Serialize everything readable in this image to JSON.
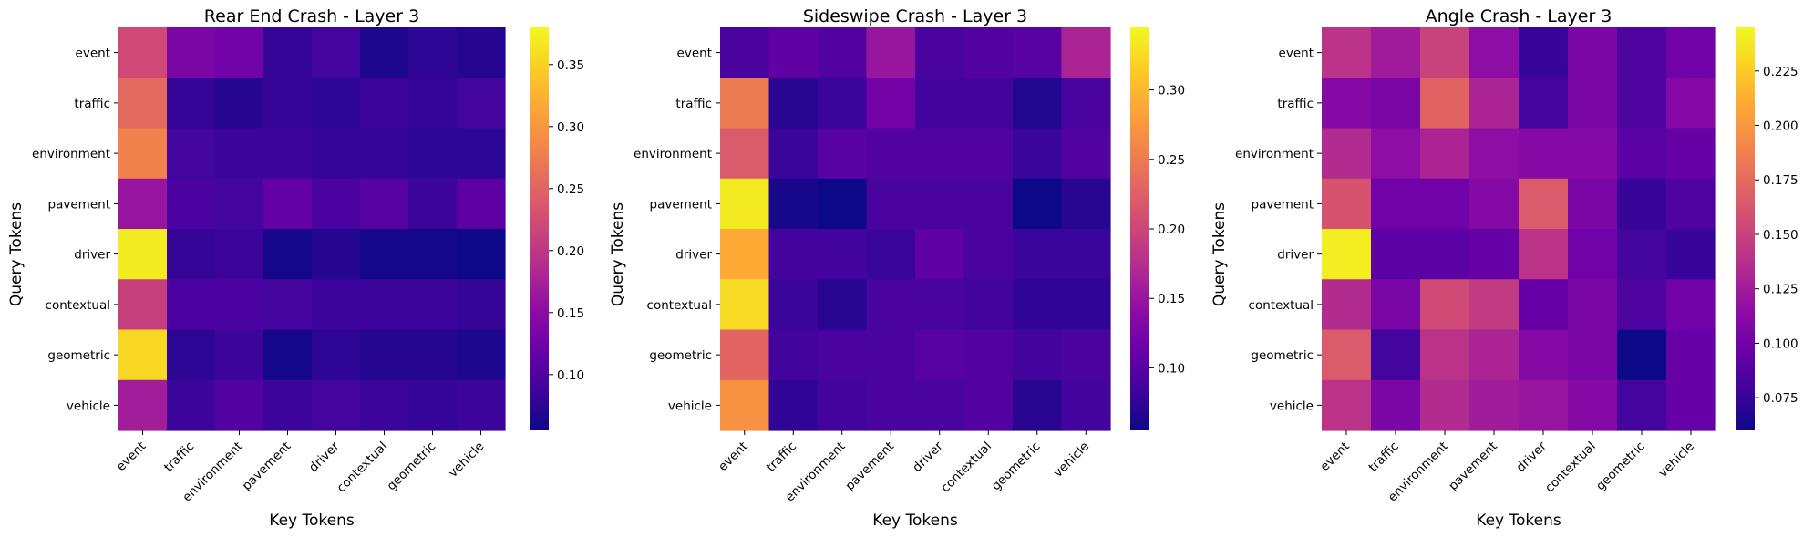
{
  "colormap": "plasma",
  "chart_data": [
    {
      "type": "heatmap",
      "title": "Rear End Crash - Layer 3",
      "xlabel": "Key Tokens",
      "ylabel": "Query Tokens",
      "x": [
        "event",
        "traffic",
        "environment",
        "pavement",
        "driver",
        "contextual",
        "geometric",
        "vehicle"
      ],
      "y": [
        "event",
        "traffic",
        "environment",
        "pavement",
        "driver",
        "contextual",
        "geometric",
        "vehicle"
      ],
      "vmin": 0.055,
      "vmax": 0.38,
      "colorbar_ticks": [
        "0.10",
        "0.15",
        "0.20",
        "0.25",
        "0.30",
        "0.35"
      ],
      "values": [
        [
          0.22,
          0.135,
          0.125,
          0.08,
          0.09,
          0.065,
          0.075,
          0.07
        ],
        [
          0.255,
          0.08,
          0.07,
          0.08,
          0.075,
          0.085,
          0.08,
          0.09
        ],
        [
          0.28,
          0.09,
          0.085,
          0.085,
          0.08,
          0.08,
          0.075,
          0.075
        ],
        [
          0.16,
          0.095,
          0.09,
          0.115,
          0.095,
          0.105,
          0.085,
          0.11
        ],
        [
          0.37,
          0.08,
          0.085,
          0.06,
          0.07,
          0.06,
          0.06,
          0.055
        ],
        [
          0.21,
          0.095,
          0.095,
          0.09,
          0.085,
          0.085,
          0.085,
          0.08
        ],
        [
          0.355,
          0.075,
          0.085,
          0.06,
          0.075,
          0.07,
          0.07,
          0.065
        ],
        [
          0.17,
          0.085,
          0.1,
          0.085,
          0.09,
          0.085,
          0.08,
          0.085
        ]
      ]
    },
    {
      "type": "heatmap",
      "title": "Sideswipe Crash - Layer 3",
      "xlabel": "Key Tokens",
      "ylabel": "Query Tokens",
      "x": [
        "event",
        "traffic",
        "environment",
        "pavement",
        "driver",
        "contextual",
        "geometric",
        "vehicle"
      ],
      "y": [
        "event",
        "traffic",
        "environment",
        "pavement",
        "driver",
        "contextual",
        "geometric",
        "vehicle"
      ],
      "vmin": 0.055,
      "vmax": 0.345,
      "colorbar_ticks": [
        "0.10",
        "0.15",
        "0.20",
        "0.25",
        "0.30"
      ],
      "values": [
        [
          0.09,
          0.105,
          0.095,
          0.15,
          0.09,
          0.095,
          0.1,
          0.165
        ],
        [
          0.25,
          0.07,
          0.08,
          0.12,
          0.085,
          0.085,
          0.065,
          0.09
        ],
        [
          0.22,
          0.08,
          0.1,
          0.095,
          0.095,
          0.095,
          0.08,
          0.095
        ],
        [
          0.335,
          0.06,
          0.055,
          0.09,
          0.09,
          0.09,
          0.055,
          0.07
        ],
        [
          0.29,
          0.085,
          0.085,
          0.08,
          0.105,
          0.09,
          0.08,
          0.08
        ],
        [
          0.325,
          0.08,
          0.07,
          0.09,
          0.09,
          0.085,
          0.075,
          0.075
        ],
        [
          0.23,
          0.085,
          0.09,
          0.09,
          0.1,
          0.095,
          0.085,
          0.09
        ],
        [
          0.27,
          0.075,
          0.085,
          0.09,
          0.09,
          0.095,
          0.07,
          0.085
        ]
      ]
    },
    {
      "type": "heatmap",
      "title": "Angle Crash - Layer 3",
      "xlabel": "Key Tokens",
      "ylabel": "Query Tokens",
      "x": [
        "event",
        "traffic",
        "environment",
        "pavement",
        "driver",
        "contextual",
        "geometric",
        "vehicle"
      ],
      "y": [
        "event",
        "traffic",
        "environment",
        "pavement",
        "driver",
        "contextual",
        "geometric",
        "vehicle"
      ],
      "vmin": 0.06,
      "vmax": 0.245,
      "colorbar_ticks": [
        "0.075",
        "0.100",
        "0.125",
        "0.150",
        "0.175",
        "0.200",
        "0.225"
      ],
      "values": [
        [
          0.14,
          0.125,
          0.15,
          0.115,
          0.075,
          0.105,
          0.085,
          0.1
        ],
        [
          0.11,
          0.105,
          0.17,
          0.13,
          0.08,
          0.105,
          0.085,
          0.11
        ],
        [
          0.135,
          0.115,
          0.13,
          0.115,
          0.11,
          0.11,
          0.09,
          0.095
        ],
        [
          0.16,
          0.1,
          0.1,
          0.11,
          0.165,
          0.105,
          0.075,
          0.085
        ],
        [
          0.24,
          0.09,
          0.09,
          0.095,
          0.14,
          0.1,
          0.08,
          0.075
        ],
        [
          0.135,
          0.105,
          0.155,
          0.145,
          0.095,
          0.105,
          0.085,
          0.1
        ],
        [
          0.165,
          0.08,
          0.14,
          0.13,
          0.11,
          0.105,
          0.06,
          0.095
        ],
        [
          0.14,
          0.105,
          0.135,
          0.125,
          0.12,
          0.11,
          0.08,
          0.095
        ]
      ]
    }
  ]
}
